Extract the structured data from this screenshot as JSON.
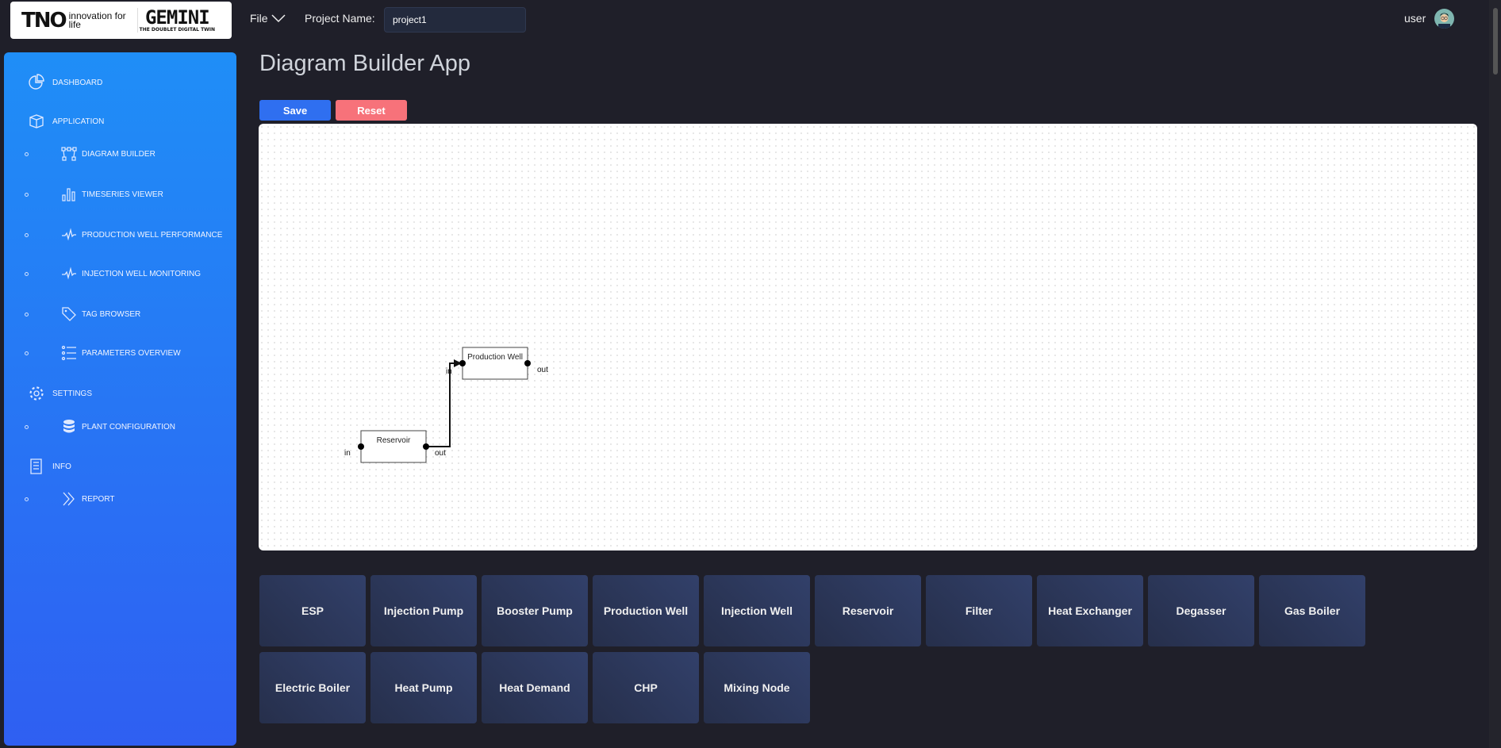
{
  "header": {
    "logo_tno": "TNO",
    "logo_tno_tagline": "innovation for life",
    "logo_gemini": "GEMINI",
    "logo_gemini_sub": "THE DOUBLET DIGITAL TWIN",
    "file_menu": "File",
    "project_label": "Project Name:",
    "project_value": "project1",
    "user": "user"
  },
  "sidebar": {
    "items": [
      {
        "label": "DASHBOARD",
        "icon": "pie-chart-icon",
        "level": 0
      },
      {
        "label": "APPLICATION",
        "icon": "cube-icon",
        "level": 0
      },
      {
        "label": "DIAGRAM BUILDER",
        "icon": "diagram-icon",
        "level": 1
      },
      {
        "label": "TIMESERIES VIEWER",
        "icon": "bar-chart-icon",
        "level": 1
      },
      {
        "label": "PRODUCTION WELL PERFORMANCE",
        "icon": "pulse-icon",
        "level": 1
      },
      {
        "label": "INJECTION WELL MONITORING",
        "icon": "pulse-icon",
        "level": 1
      },
      {
        "label": "TAG BROWSER",
        "icon": "tag-icon",
        "level": 1
      },
      {
        "label": "PARAMETERS OVERVIEW",
        "icon": "list-icon",
        "level": 1
      },
      {
        "label": "SETTINGS",
        "icon": "gear-icon",
        "level": 0
      },
      {
        "label": "PLANT CONFIGURATION",
        "icon": "database-icon",
        "level": 1
      },
      {
        "label": "INFO",
        "icon": "document-icon",
        "level": 0
      },
      {
        "label": "REPORT",
        "icon": "chevrons-right-icon",
        "level": 1
      }
    ]
  },
  "main": {
    "title": "Diagram Builder App",
    "save": "Save",
    "reset": "Reset",
    "colors": {
      "save": "#2f6ff0",
      "reset": "#f7727a"
    },
    "diagram": {
      "nodes": [
        {
          "label": "Production Well",
          "in": "in",
          "out": "out"
        },
        {
          "label": "Reservoir",
          "in": "in",
          "out": "out"
        }
      ],
      "links": [
        {
          "from": "Reservoir.out",
          "to": "Production Well.in"
        }
      ]
    },
    "components": [
      "ESP",
      "Injection Pump",
      "Booster Pump",
      "Production Well",
      "Injection Well",
      "Reservoir",
      "Filter",
      "Heat Exchanger",
      "Degasser",
      "Gas Boiler",
      "Electric Boiler",
      "Heat Pump",
      "Heat Demand",
      "CHP",
      "Mixing Node"
    ]
  }
}
